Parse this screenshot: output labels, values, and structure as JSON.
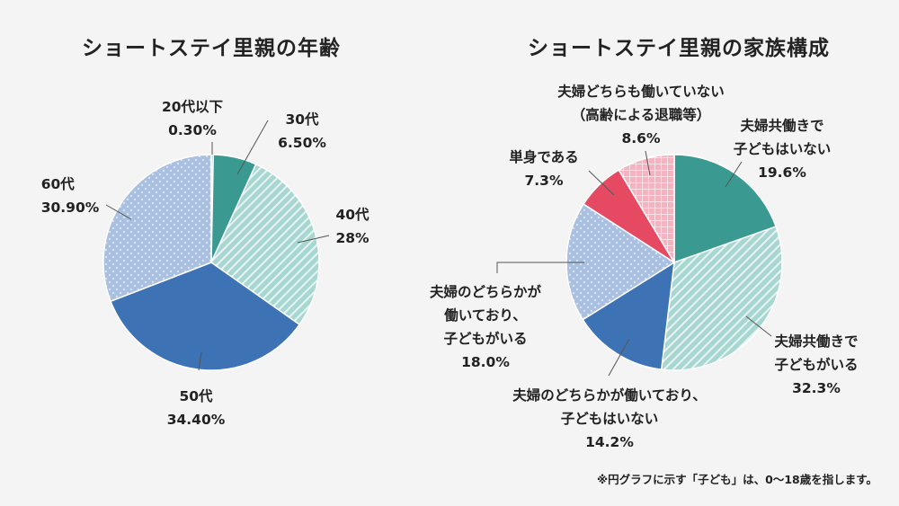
{
  "chart_data": [
    {
      "type": "pie",
      "title": "ショートステイ里親の年齢",
      "start": "top",
      "direction": "clockwise",
      "slices": [
        {
          "label": "20代以下",
          "value": 0.3,
          "display": "0.30%",
          "color": "#8fb0d8",
          "pattern": "solid"
        },
        {
          "label": "30代",
          "value": 6.5,
          "display": "6.50%",
          "color": "#3a9a92",
          "pattern": "solid"
        },
        {
          "label": "40代",
          "value": 28,
          "display": "28%",
          "color": "#a8d6d1",
          "pattern": "stripes"
        },
        {
          "label": "50代",
          "value": 34.4,
          "display": "34.40%",
          "color": "#3d72b4",
          "pattern": "solid"
        },
        {
          "label": "60代",
          "value": 30.9,
          "display": "30.90%",
          "color": "#a9c0e0",
          "pattern": "dots"
        }
      ]
    },
    {
      "type": "pie",
      "title": "ショートステイ里親の家族構成",
      "start": "top",
      "direction": "clockwise",
      "slices": [
        {
          "label": [
            "夫婦共働きで",
            "子どもはいない"
          ],
          "value": 19.6,
          "display": "19.6%",
          "color": "#3a9a92",
          "pattern": "solid"
        },
        {
          "label": [
            "夫婦共働きで",
            "子どもがいる"
          ],
          "value": 32.3,
          "display": "32.3%",
          "color": "#a8d6d1",
          "pattern": "stripes"
        },
        {
          "label": [
            "夫婦のどちらかが働いており、",
            "子どもはいない"
          ],
          "value": 14.2,
          "display": "14.2%",
          "color": "#3d72b4",
          "pattern": "solid"
        },
        {
          "label": [
            "夫婦のどちらかが",
            "働いており、",
            "子どもがいる"
          ],
          "value": 18.0,
          "display": "18.0%",
          "color": "#a9c0e0",
          "pattern": "dots"
        },
        {
          "label": [
            "単身である"
          ],
          "value": 7.3,
          "display": "7.3%",
          "color": "#e64a63",
          "pattern": "solid"
        },
        {
          "label": [
            "夫婦どちらも働いていない",
            "（高齢による退職等）"
          ],
          "value": 8.6,
          "display": "8.6%",
          "color": "#f4b3c0",
          "pattern": "grid"
        }
      ]
    }
  ],
  "footnote": "※円グラフに示す「子ども」は、0〜18歳を指します。"
}
